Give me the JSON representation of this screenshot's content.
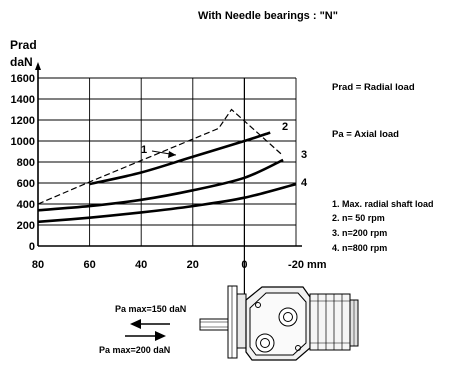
{
  "title": "With Needle bearings : \"N\"",
  "chart_data": {
    "type": "line",
    "ylabel_line1": "Prad",
    "ylabel_line2": "daN",
    "xunit": "mm",
    "x_tick_values": [
      80,
      60,
      40,
      20,
      0,
      -20
    ],
    "x_tick_labels": [
      "80",
      "60",
      "40",
      "20",
      "0",
      "-20"
    ],
    "y_tick_values": [
      0,
      200,
      400,
      600,
      800,
      1000,
      1200,
      1400,
      1600
    ],
    "y_tick_labels": [
      "0",
      "200",
      "400",
      "600",
      "800",
      "1000",
      "1200",
      "1400",
      "1600"
    ],
    "xlim": [
      80,
      -20
    ],
    "ylim": [
      0,
      1600
    ],
    "grid": true,
    "series": [
      {
        "label": "1",
        "dashed": true,
        "x": [
          80,
          60,
          10,
          5,
          -15
        ],
        "y": [
          400,
          610,
          1120,
          1300,
          860
        ]
      },
      {
        "label": "2",
        "dashed": false,
        "x": [
          60,
          40,
          20,
          0,
          -10
        ],
        "y": [
          590,
          700,
          850,
          1000,
          1080
        ]
      },
      {
        "label": "3",
        "dashed": false,
        "x": [
          80,
          60,
          40,
          20,
          0,
          -15
        ],
        "y": [
          340,
          380,
          440,
          530,
          650,
          820
        ]
      },
      {
        "label": "4",
        "dashed": false,
        "x": [
          80,
          60,
          40,
          20,
          0,
          -20
        ],
        "y": [
          230,
          270,
          320,
          380,
          460,
          590
        ]
      }
    ]
  },
  "legend": {
    "prad": "Prad = Radial load",
    "pa": "Pa = Axial load",
    "items": [
      "1. Max. radial shaft load",
      "2. n=  50 rpm",
      "3. n=200 rpm",
      "4. n=800 rpm"
    ]
  },
  "axial": {
    "top": "Pa max=150 daN",
    "bottom": "Pa max=200 daN"
  }
}
